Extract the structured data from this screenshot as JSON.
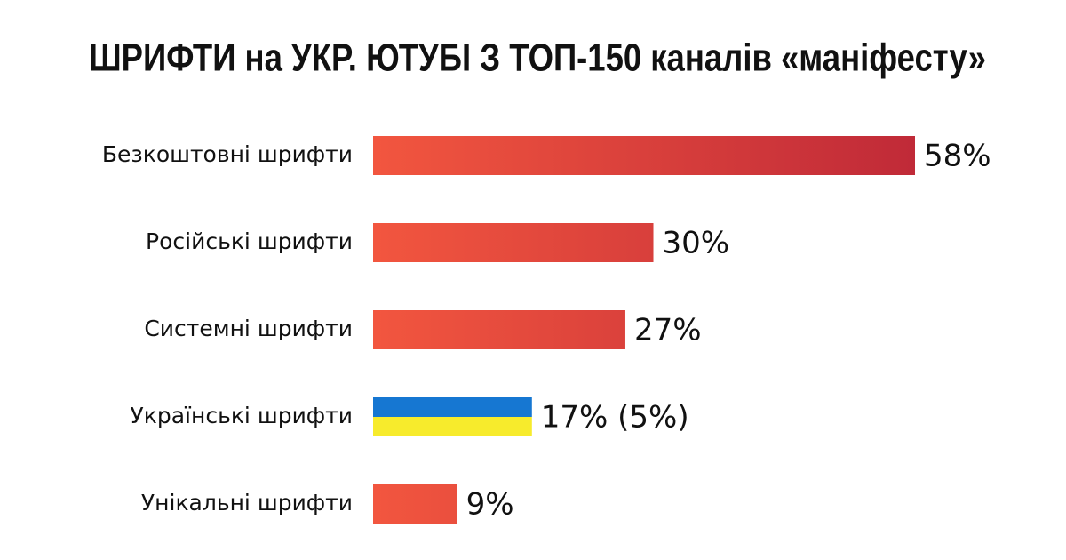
{
  "chart_data": {
    "type": "bar",
    "orientation": "horizontal",
    "title": "ШРИФТИ на УКР. ЮТУБІ З ТОП-150 каналів «маніфесту»",
    "categories": [
      "Безкоштовні шрифти",
      "Російські шрифти",
      "Системні шрифти",
      "Українські шрифти",
      "Унікальні шрифти"
    ],
    "values": [
      58,
      30,
      27,
      17,
      9
    ],
    "value_labels": [
      "58%",
      "30%",
      "27%",
      "17% (5%)",
      "9%"
    ],
    "bar_gradient": [
      "#f2563f",
      "#c02a38"
    ],
    "flag_bar": {
      "index": 3,
      "colors": [
        "#1677d2",
        "#f7eb2c"
      ]
    }
  }
}
